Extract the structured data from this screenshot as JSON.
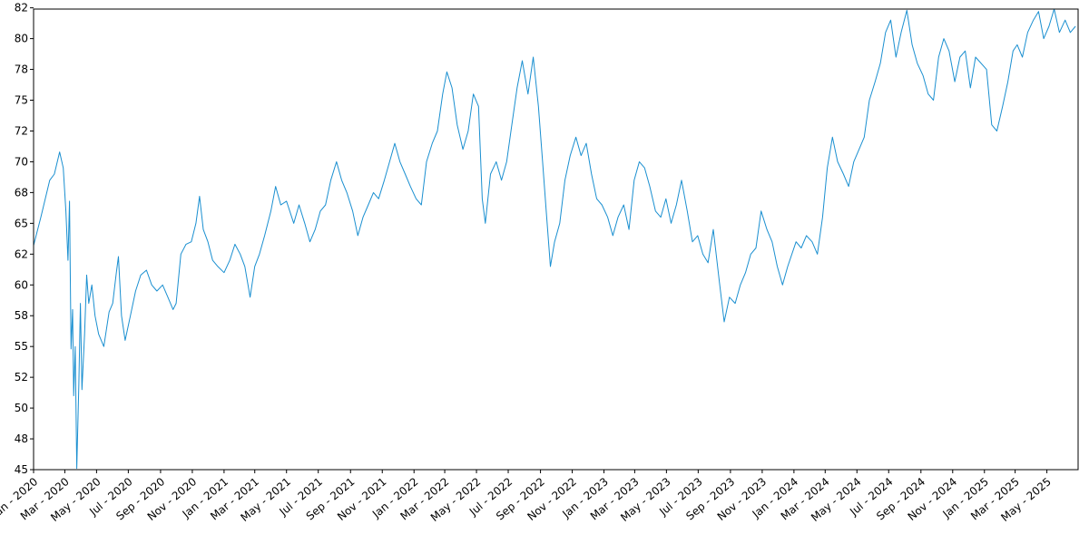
{
  "chart_data": {
    "type": "line",
    "title": "",
    "xlabel": "",
    "ylabel": "",
    "x_range": [
      "2020-01-01",
      "2025-06-30"
    ],
    "ylim": [
      45,
      82.4
    ],
    "grid": false,
    "legend": "none",
    "y_ticks": [
      {
        "value": 45,
        "label": "45"
      },
      {
        "value": 47.5,
        "label": "48"
      },
      {
        "value": 50,
        "label": "50"
      },
      {
        "value": 52.5,
        "label": "52"
      },
      {
        "value": 55,
        "label": "55"
      },
      {
        "value": 57.5,
        "label": "58"
      },
      {
        "value": 60,
        "label": "60"
      },
      {
        "value": 62.5,
        "label": "62"
      },
      {
        "value": 65,
        "label": "65"
      },
      {
        "value": 67.5,
        "label": "68"
      },
      {
        "value": 70,
        "label": "70"
      },
      {
        "value": 72.5,
        "label": "72"
      },
      {
        "value": 75,
        "label": "75"
      },
      {
        "value": 77.5,
        "label": "78"
      },
      {
        "value": 80,
        "label": "80"
      },
      {
        "value": 82.5,
        "label": "82"
      }
    ],
    "x_ticks": [
      {
        "date": "2020-01-01",
        "label": "Jan - 2020"
      },
      {
        "date": "2020-03-01",
        "label": "Mar - 2020"
      },
      {
        "date": "2020-05-01",
        "label": "May - 2020"
      },
      {
        "date": "2020-07-01",
        "label": "Jul - 2020"
      },
      {
        "date": "2020-09-01",
        "label": "Sep - 2020"
      },
      {
        "date": "2020-11-01",
        "label": "Nov - 2020"
      },
      {
        "date": "2021-01-01",
        "label": "Jan - 2021"
      },
      {
        "date": "2021-03-01",
        "label": "Mar - 2021"
      },
      {
        "date": "2021-05-01",
        "label": "May - 2021"
      },
      {
        "date": "2021-07-01",
        "label": "Jul - 2021"
      },
      {
        "date": "2021-09-01",
        "label": "Sep - 2021"
      },
      {
        "date": "2021-11-01",
        "label": "Nov - 2021"
      },
      {
        "date": "2022-01-01",
        "label": "Jan - 2022"
      },
      {
        "date": "2022-03-01",
        "label": "Mar - 2022"
      },
      {
        "date": "2022-05-01",
        "label": "May - 2022"
      },
      {
        "date": "2022-07-01",
        "label": "Jul - 2022"
      },
      {
        "date": "2022-09-01",
        "label": "Sep - 2022"
      },
      {
        "date": "2022-11-01",
        "label": "Nov - 2022"
      },
      {
        "date": "2023-01-01",
        "label": "Jan - 2023"
      },
      {
        "date": "2023-03-01",
        "label": "Mar - 2023"
      },
      {
        "date": "2023-05-01",
        "label": "May - 2023"
      },
      {
        "date": "2023-07-01",
        "label": "Jul - 2023"
      },
      {
        "date": "2023-09-01",
        "label": "Sep - 2023"
      },
      {
        "date": "2023-11-01",
        "label": "Nov - 2023"
      },
      {
        "date": "2024-01-01",
        "label": "Jan - 2024"
      },
      {
        "date": "2024-03-01",
        "label": "Mar - 2024"
      },
      {
        "date": "2024-05-01",
        "label": "May - 2024"
      },
      {
        "date": "2024-07-01",
        "label": "Jul - 2024"
      },
      {
        "date": "2024-09-01",
        "label": "Sep - 2024"
      },
      {
        "date": "2024-11-01",
        "label": "Nov - 2024"
      },
      {
        "date": "2025-01-01",
        "label": "Jan - 2025"
      },
      {
        "date": "2025-03-01",
        "label": "Mar - 2025"
      },
      {
        "date": "2025-05-01",
        "label": "May - 2025"
      }
    ],
    "series": [
      {
        "color": "#1a8fd0",
        "points": [
          [
            "2020-01-01",
            63.2
          ],
          [
            "2020-01-15",
            65.5
          ],
          [
            "2020-02-01",
            68.5
          ],
          [
            "2020-02-10",
            69.0
          ],
          [
            "2020-02-20",
            70.8
          ],
          [
            "2020-02-27",
            69.5
          ],
          [
            "2020-03-03",
            66.0
          ],
          [
            "2020-03-07",
            62.0
          ],
          [
            "2020-03-10",
            66.8
          ],
          [
            "2020-03-13",
            54.8
          ],
          [
            "2020-03-16",
            58.0
          ],
          [
            "2020-03-18",
            51.0
          ],
          [
            "2020-03-21",
            55.0
          ],
          [
            "2020-03-24",
            45.1
          ],
          [
            "2020-03-28",
            52.0
          ],
          [
            "2020-03-31",
            58.5
          ],
          [
            "2020-04-03",
            51.5
          ],
          [
            "2020-04-08",
            56.0
          ],
          [
            "2020-04-12",
            60.8
          ],
          [
            "2020-04-16",
            58.5
          ],
          [
            "2020-04-22",
            60.0
          ],
          [
            "2020-04-28",
            57.5
          ],
          [
            "2020-05-05",
            56.0
          ],
          [
            "2020-05-15",
            55.0
          ],
          [
            "2020-05-25",
            57.8
          ],
          [
            "2020-06-01",
            58.5
          ],
          [
            "2020-06-08",
            61.0
          ],
          [
            "2020-06-12",
            62.3
          ],
          [
            "2020-06-18",
            57.5
          ],
          [
            "2020-06-25",
            55.5
          ],
          [
            "2020-07-05",
            57.5
          ],
          [
            "2020-07-15",
            59.5
          ],
          [
            "2020-07-25",
            60.8
          ],
          [
            "2020-08-05",
            61.2
          ],
          [
            "2020-08-15",
            60.0
          ],
          [
            "2020-08-25",
            59.5
          ],
          [
            "2020-09-05",
            60.0
          ],
          [
            "2020-09-15",
            59.0
          ],
          [
            "2020-09-25",
            58.0
          ],
          [
            "2020-10-01",
            58.5
          ],
          [
            "2020-10-10",
            62.5
          ],
          [
            "2020-10-20",
            63.3
          ],
          [
            "2020-10-30",
            63.5
          ],
          [
            "2020-11-08",
            65.0
          ],
          [
            "2020-11-15",
            67.2
          ],
          [
            "2020-11-22",
            64.5
          ],
          [
            "2020-12-01",
            63.5
          ],
          [
            "2020-12-10",
            62.0
          ],
          [
            "2020-12-20",
            61.5
          ],
          [
            "2021-01-01",
            61.0
          ],
          [
            "2021-01-12",
            62.0
          ],
          [
            "2021-01-22",
            63.3
          ],
          [
            "2021-02-01",
            62.5
          ],
          [
            "2021-02-10",
            61.5
          ],
          [
            "2021-02-20",
            59.0
          ],
          [
            "2021-03-01",
            61.5
          ],
          [
            "2021-03-10",
            62.5
          ],
          [
            "2021-03-20",
            64.0
          ],
          [
            "2021-04-01",
            66.0
          ],
          [
            "2021-04-10",
            68.0
          ],
          [
            "2021-04-20",
            66.5
          ],
          [
            "2021-05-01",
            66.8
          ],
          [
            "2021-05-15",
            65.0
          ],
          [
            "2021-05-25",
            66.5
          ],
          [
            "2021-06-05",
            65.0
          ],
          [
            "2021-06-15",
            63.5
          ],
          [
            "2021-06-25",
            64.5
          ],
          [
            "2021-07-05",
            66.0
          ],
          [
            "2021-07-15",
            66.5
          ],
          [
            "2021-07-25",
            68.5
          ],
          [
            "2021-08-05",
            70.0
          ],
          [
            "2021-08-15",
            68.5
          ],
          [
            "2021-08-25",
            67.5
          ],
          [
            "2021-09-05",
            66.0
          ],
          [
            "2021-09-15",
            64.0
          ],
          [
            "2021-09-25",
            65.5
          ],
          [
            "2021-10-05",
            66.5
          ],
          [
            "2021-10-15",
            67.5
          ],
          [
            "2021-10-25",
            67.0
          ],
          [
            "2021-11-05",
            68.5
          ],
          [
            "2021-11-15",
            70.0
          ],
          [
            "2021-11-25",
            71.5
          ],
          [
            "2021-12-05",
            70.0
          ],
          [
            "2021-12-15",
            69.0
          ],
          [
            "2021-12-25",
            68.0
          ],
          [
            "2022-01-05",
            67.0
          ],
          [
            "2022-01-15",
            66.5
          ],
          [
            "2022-01-25",
            70.0
          ],
          [
            "2022-02-05",
            71.5
          ],
          [
            "2022-02-15",
            72.5
          ],
          [
            "2022-02-25",
            75.5
          ],
          [
            "2022-03-05",
            77.3
          ],
          [
            "2022-03-15",
            76.0
          ],
          [
            "2022-03-25",
            73.0
          ],
          [
            "2022-04-05",
            71.0
          ],
          [
            "2022-04-15",
            72.5
          ],
          [
            "2022-04-25",
            75.5
          ],
          [
            "2022-05-05",
            74.5
          ],
          [
            "2022-05-12",
            67.0
          ],
          [
            "2022-05-18",
            65.0
          ],
          [
            "2022-05-28",
            69.0
          ],
          [
            "2022-06-08",
            70.0
          ],
          [
            "2022-06-18",
            68.5
          ],
          [
            "2022-06-28",
            70.0
          ],
          [
            "2022-07-08",
            73.0
          ],
          [
            "2022-07-18",
            76.0
          ],
          [
            "2022-07-28",
            78.2
          ],
          [
            "2022-08-08",
            75.5
          ],
          [
            "2022-08-18",
            78.5
          ],
          [
            "2022-08-28",
            74.5
          ],
          [
            "2022-09-05",
            70.0
          ],
          [
            "2022-09-12",
            66.0
          ],
          [
            "2022-09-20",
            61.5
          ],
          [
            "2022-09-28",
            63.5
          ],
          [
            "2022-10-08",
            65.0
          ],
          [
            "2022-10-18",
            68.5
          ],
          [
            "2022-10-28",
            70.5
          ],
          [
            "2022-11-08",
            72.0
          ],
          [
            "2022-11-18",
            70.5
          ],
          [
            "2022-11-28",
            71.5
          ],
          [
            "2022-12-08",
            69.0
          ],
          [
            "2022-12-18",
            67.0
          ],
          [
            "2022-12-28",
            66.5
          ],
          [
            "2023-01-08",
            65.5
          ],
          [
            "2023-01-18",
            64.0
          ],
          [
            "2023-01-28",
            65.5
          ],
          [
            "2023-02-08",
            66.5
          ],
          [
            "2023-02-18",
            64.5
          ],
          [
            "2023-02-28",
            68.5
          ],
          [
            "2023-03-10",
            70.0
          ],
          [
            "2023-03-20",
            69.5
          ],
          [
            "2023-03-30",
            68.0
          ],
          [
            "2023-04-10",
            66.0
          ],
          [
            "2023-04-20",
            65.5
          ],
          [
            "2023-04-30",
            67.0
          ],
          [
            "2023-05-10",
            65.0
          ],
          [
            "2023-05-20",
            66.5
          ],
          [
            "2023-05-30",
            68.5
          ],
          [
            "2023-06-10",
            66.0
          ],
          [
            "2023-06-20",
            63.5
          ],
          [
            "2023-06-30",
            64.0
          ],
          [
            "2023-07-10",
            62.5
          ],
          [
            "2023-07-20",
            61.8
          ],
          [
            "2023-07-30",
            64.5
          ],
          [
            "2023-08-10",
            60.5
          ],
          [
            "2023-08-20",
            57.0
          ],
          [
            "2023-08-30",
            59.0
          ],
          [
            "2023-09-10",
            58.5
          ],
          [
            "2023-09-20",
            60.0
          ],
          [
            "2023-09-30",
            61.0
          ],
          [
            "2023-10-10",
            62.5
          ],
          [
            "2023-10-20",
            63.0
          ],
          [
            "2023-10-30",
            66.0
          ],
          [
            "2023-11-10",
            64.5
          ],
          [
            "2023-11-20",
            63.5
          ],
          [
            "2023-11-30",
            61.5
          ],
          [
            "2023-12-10",
            60.0
          ],
          [
            "2023-12-20",
            61.5
          ],
          [
            "2024-01-05",
            63.5
          ],
          [
            "2024-01-15",
            63.0
          ],
          [
            "2024-01-25",
            64.0
          ],
          [
            "2024-02-05",
            63.5
          ],
          [
            "2024-02-15",
            62.5
          ],
          [
            "2024-02-25",
            65.5
          ],
          [
            "2024-03-05",
            69.5
          ],
          [
            "2024-03-15",
            72.0
          ],
          [
            "2024-03-25",
            70.0
          ],
          [
            "2024-04-05",
            69.0
          ],
          [
            "2024-04-15",
            68.0
          ],
          [
            "2024-04-25",
            70.0
          ],
          [
            "2024-05-05",
            71.0
          ],
          [
            "2024-05-15",
            72.0
          ],
          [
            "2024-05-25",
            75.0
          ],
          [
            "2024-06-05",
            76.5
          ],
          [
            "2024-06-15",
            78.0
          ],
          [
            "2024-06-25",
            80.5
          ],
          [
            "2024-07-05",
            81.5
          ],
          [
            "2024-07-15",
            78.5
          ],
          [
            "2024-07-25",
            80.5
          ],
          [
            "2024-08-05",
            82.3
          ],
          [
            "2024-08-15",
            79.5
          ],
          [
            "2024-08-25",
            78.0
          ],
          [
            "2024-09-05",
            77.0
          ],
          [
            "2024-09-15",
            75.5
          ],
          [
            "2024-09-25",
            75.0
          ],
          [
            "2024-10-05",
            78.5
          ],
          [
            "2024-10-15",
            80.0
          ],
          [
            "2024-10-25",
            79.0
          ],
          [
            "2024-11-05",
            76.5
          ],
          [
            "2024-11-15",
            78.5
          ],
          [
            "2024-11-25",
            79.0
          ],
          [
            "2024-12-05",
            76.0
          ],
          [
            "2024-12-15",
            78.5
          ],
          [
            "2025-01-05",
            77.5
          ],
          [
            "2025-01-15",
            73.0
          ],
          [
            "2025-01-25",
            72.5
          ],
          [
            "2025-02-05",
            74.5
          ],
          [
            "2025-02-15",
            76.5
          ],
          [
            "2025-02-25",
            79.0
          ],
          [
            "2025-03-05",
            79.5
          ],
          [
            "2025-03-15",
            78.5
          ],
          [
            "2025-03-25",
            80.5
          ],
          [
            "2025-04-05",
            81.5
          ],
          [
            "2025-04-15",
            82.2
          ],
          [
            "2025-04-25",
            80.0
          ],
          [
            "2025-05-05",
            81.0
          ],
          [
            "2025-05-15",
            82.4
          ],
          [
            "2025-05-25",
            80.5
          ],
          [
            "2025-06-05",
            81.5
          ],
          [
            "2025-06-15",
            80.5
          ],
          [
            "2025-06-25",
            81.0
          ]
        ]
      }
    ]
  }
}
